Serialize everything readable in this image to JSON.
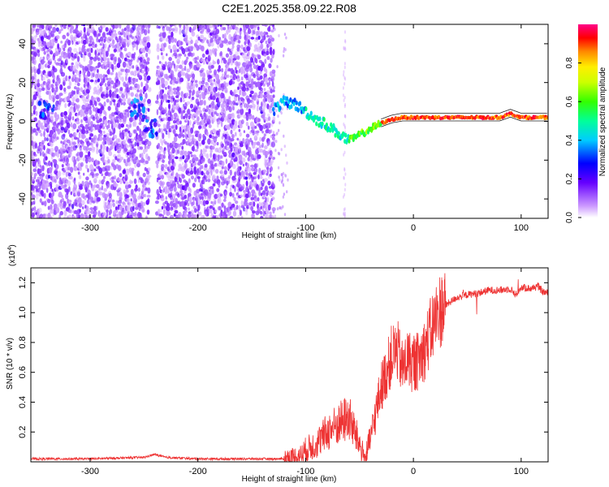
{
  "title": "C2E1.2025.358.09.22.R08",
  "chart_data": [
    {
      "type": "heatmap",
      "name": "spectrogram",
      "xlabel": "Height of straight line (km)",
      "ylabel": "Frequency (Hz)",
      "xlim": [
        -355,
        125
      ],
      "ylim": [
        -50,
        50
      ],
      "x_ticks": [
        -300,
        -200,
        -100,
        0,
        100
      ],
      "y_ticks": [
        -40,
        -20,
        0,
        20,
        40
      ],
      "colorbar": {
        "label": "Normalized spectral amplitude",
        "range": [
          0,
          1
        ],
        "ticks": [
          0.0,
          0.2,
          0.4,
          0.6,
          0.8
        ],
        "tick_labels": [
          "0.0",
          "0.2",
          "0.4",
          "0.6",
          "0.8"
        ]
      },
      "noise_regions_x": [
        [
          -355,
          -245
        ],
        [
          -238,
          -130
        ]
      ],
      "signal_trace": {
        "x": [
          -130,
          -120,
          -110,
          -100,
          -90,
          -80,
          -70,
          -60,
          -50,
          -40,
          -30,
          -20,
          -10,
          0,
          20,
          40,
          60,
          80,
          90,
          100,
          110,
          125
        ],
        "y": [
          6,
          10,
          9,
          5,
          1,
          -2,
          -6,
          -10,
          -7,
          -4,
          -1,
          1,
          2,
          2,
          2,
          2,
          2,
          2,
          4,
          2,
          2,
          2
        ]
      },
      "secondary_blobs": [
        {
          "x": -340,
          "y": 5
        },
        {
          "x": -255,
          "y": 7
        },
        {
          "x": -245,
          "y": -3
        }
      ]
    },
    {
      "type": "line",
      "name": "snr",
      "xlabel": "Height of straight line (km)",
      "ylabel": "SNR (10 * v/v)",
      "y_scale_label": "(x10",
      "y_scale_exponent": "4",
      "xlim": [
        -355,
        125
      ],
      "ylim": [
        0,
        1.3
      ],
      "x_ticks": [
        -300,
        -200,
        -100,
        0,
        100
      ],
      "y_ticks": [
        0.2,
        0.4,
        0.6,
        0.8,
        1.0,
        1.2
      ],
      "y_tick_labels": [
        "0.2",
        "0.4",
        "0.6",
        "0.8",
        "1.0",
        "1.2"
      ],
      "series": [
        {
          "name": "SNR",
          "color": "#ee3333",
          "x": [
            -355,
            -300,
            -250,
            -240,
            -230,
            -200,
            -150,
            -120,
            -105,
            -100,
            -90,
            -80,
            -70,
            -60,
            -50,
            -45,
            -40,
            -30,
            -25,
            -20,
            -15,
            -10,
            -5,
            0,
            5,
            10,
            15,
            20,
            25,
            30,
            40,
            50,
            60,
            70,
            80,
            90,
            95,
            100,
            110,
            115,
            120,
            125
          ],
          "y": [
            0.02,
            0.02,
            0.03,
            0.05,
            0.03,
            0.02,
            0.02,
            0.02,
            0.04,
            0.08,
            0.12,
            0.2,
            0.25,
            0.3,
            0.12,
            0.02,
            0.15,
            0.5,
            0.6,
            0.72,
            0.75,
            0.62,
            0.7,
            0.65,
            0.68,
            0.75,
            0.85,
            0.95,
            1.02,
            1.05,
            1.1,
            1.12,
            1.13,
            1.15,
            1.15,
            1.16,
            1.12,
            1.17,
            1.16,
            1.18,
            1.14,
            1.13
          ]
        }
      ]
    }
  ]
}
